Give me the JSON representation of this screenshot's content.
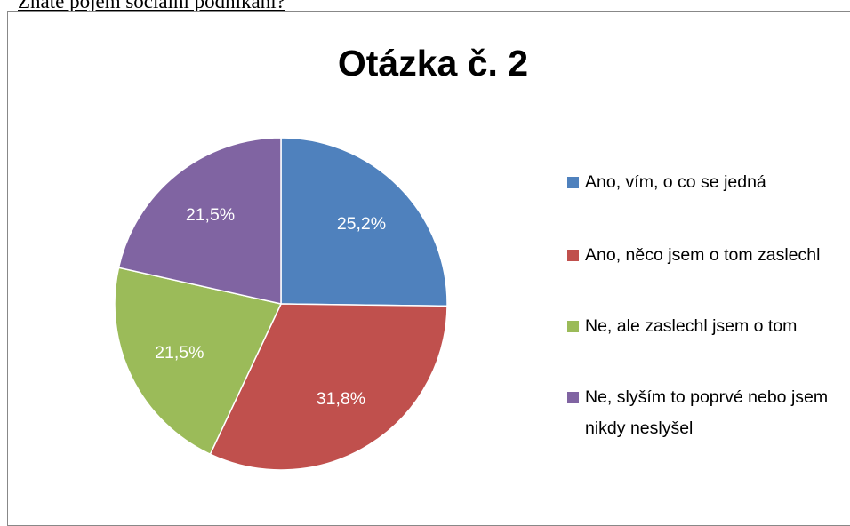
{
  "heading": "Znáte pojem sociální podnikání?",
  "chart_data": {
    "type": "pie",
    "title": "Otázka č. 2",
    "categories": [
      "Ano, vím, o co se jedná",
      "Ano, něco jsem o tom zaslechl",
      "Ne, ale zaslechl jsem o tom",
      "Ne, slyším to poprvé nebo jsem nikdy neslyšel"
    ],
    "values": [
      25.2,
      31.8,
      21.5,
      21.5
    ],
    "value_labels": [
      "25,2%",
      "31,8%",
      "21,5%",
      "21,5%"
    ],
    "colors": [
      "#4f81bd",
      "#c0504d",
      "#9bbb59",
      "#8064a2"
    ],
    "legend": "right"
  }
}
